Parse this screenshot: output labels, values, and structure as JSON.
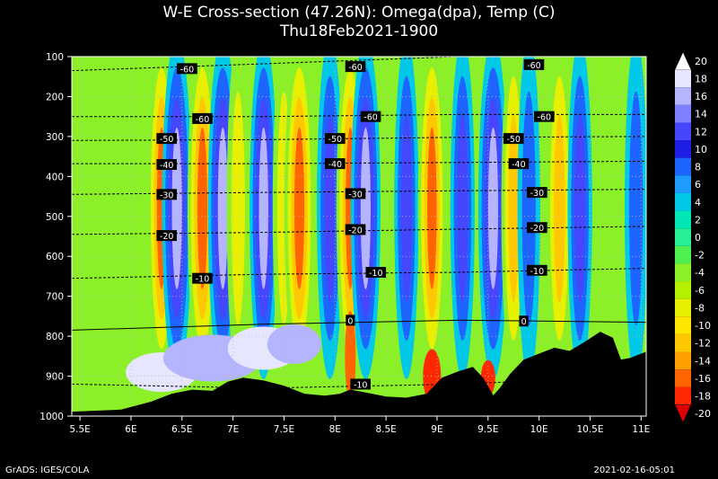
{
  "chart_data": {
    "type": "heatmap",
    "title": "W-E Cross-section (47.26N): Omega(dpa), Temp (C)",
    "subtitle": "Thu18Feb2021-1900",
    "x_tick_labels": [
      "5.5E",
      "6E",
      "6.5E",
      "7E",
      "7.5E",
      "8E",
      "8.5E",
      "9E",
      "9.5E",
      "10E",
      "10.5E",
      "11E"
    ],
    "x_tick_values": [
      5.5,
      6,
      6.5,
      7,
      7.5,
      8,
      8.5,
      9,
      9.5,
      10,
      10.5,
      11
    ],
    "xlim": [
      5.42,
      11.05
    ],
    "y_tick_labels": [
      "100",
      "200",
      "300",
      "400",
      "500",
      "600",
      "700",
      "800",
      "900",
      "1000"
    ],
    "y_tick_values": [
      100,
      200,
      300,
      400,
      500,
      600,
      700,
      800,
      900,
      1000
    ],
    "ylim": [
      100,
      1000
    ],
    "y_inverted": true,
    "colorbar_labels": [
      "20",
      "18",
      "16",
      "14",
      "12",
      "10",
      "8",
      "6",
      "4",
      "2",
      "0",
      "-2",
      "-4",
      "-6",
      "-8",
      "-10",
      "-12",
      "-14",
      "-16",
      "-18",
      "-20"
    ],
    "colorbar_colors": [
      "#ffffff",
      "#e6e6ff",
      "#b4b4ff",
      "#8080ff",
      "#4646ff",
      "#1e1ee6",
      "#1e64ff",
      "#1e9bff",
      "#00c8e6",
      "#00e6b4",
      "#28f096",
      "#50f050",
      "#8cf028",
      "#b4f000",
      "#e6f000",
      "#ffe600",
      "#ffc800",
      "#ffa000",
      "#ff6400",
      "#ff2800",
      "#dc0000"
    ],
    "omega_columns": [
      {
        "lon": 6.3,
        "value": -16
      },
      {
        "lon": 6.45,
        "value": 18
      },
      {
        "lon": 6.7,
        "value": -18
      },
      {
        "lon": 6.9,
        "value": 18
      },
      {
        "lon": 7.05,
        "value": -10
      },
      {
        "lon": 7.3,
        "value": 16
      },
      {
        "lon": 7.5,
        "value": -10
      },
      {
        "lon": 7.65,
        "value": -18
      },
      {
        "lon": 7.95,
        "value": 14
      },
      {
        "lon": 8.15,
        "value": -16
      },
      {
        "lon": 8.3,
        "value": 18
      },
      {
        "lon": 8.6,
        "value": -6
      },
      {
        "lon": 8.7,
        "value": 12
      },
      {
        "lon": 8.95,
        "value": -16
      },
      {
        "lon": 9.25,
        "value": 12
      },
      {
        "lon": 9.55,
        "value": 18
      },
      {
        "lon": 9.75,
        "value": -12
      },
      {
        "lon": 9.9,
        "value": 10
      },
      {
        "lon": 10.2,
        "value": -14
      },
      {
        "lon": 10.4,
        "value": 12
      },
      {
        "lon": 10.7,
        "value": -4
      },
      {
        "lon": 10.95,
        "value": 10
      }
    ],
    "temperature_contours": [
      {
        "label": "-60",
        "p": [
          135,
          118,
          100,
          90
        ]
      },
      {
        "label": "-60",
        "p": [
          250,
          250,
          245,
          245
        ]
      },
      {
        "label": "-50",
        "p": [
          310,
          308,
          302,
          300
        ]
      },
      {
        "label": "-40",
        "p": [
          368,
          368,
          365,
          362
        ]
      },
      {
        "label": "-30",
        "p": [
          445,
          440,
          436,
          432
        ]
      },
      {
        "label": "-20",
        "p": [
          545,
          540,
          532,
          525
        ]
      },
      {
        "label": "-10",
        "p": [
          655,
          645,
          640,
          630
        ]
      },
      {
        "label": "0",
        "p": [
          785,
          770,
          760,
          765
        ]
      },
      {
        "label": "-10",
        "p": [
          920,
          930,
          920,
          900
        ]
      }
    ],
    "contour_label_positions": [
      {
        "text": "-60",
        "lon": 6.55,
        "p": 130
      },
      {
        "text": "-60",
        "lon": 8.2,
        "p": 125
      },
      {
        "text": "-60",
        "lon": 9.95,
        "p": 120
      },
      {
        "text": "-60",
        "lon": 6.7,
        "p": 255
      },
      {
        "text": "-60",
        "lon": 8.35,
        "p": 250
      },
      {
        "text": "-60",
        "lon": 10.05,
        "p": 250
      },
      {
        "text": "-50",
        "lon": 6.35,
        "p": 305
      },
      {
        "text": "-50",
        "lon": 8.0,
        "p": 305
      },
      {
        "text": "-50",
        "lon": 9.75,
        "p": 305
      },
      {
        "text": "-40",
        "lon": 6.35,
        "p": 370
      },
      {
        "text": "-40",
        "lon": 8.0,
        "p": 368
      },
      {
        "text": "-40",
        "lon": 9.8,
        "p": 368
      },
      {
        "text": "-30",
        "lon": 6.35,
        "p": 445
      },
      {
        "text": "-30",
        "lon": 8.2,
        "p": 443
      },
      {
        "text": "-30",
        "lon": 9.98,
        "p": 440
      },
      {
        "text": "-20",
        "lon": 6.35,
        "p": 548
      },
      {
        "text": "-20",
        "lon": 8.2,
        "p": 533
      },
      {
        "text": "-20",
        "lon": 9.98,
        "p": 528
      },
      {
        "text": "-10",
        "lon": 6.7,
        "p": 655
      },
      {
        "text": "-10",
        "lon": 8.4,
        "p": 640
      },
      {
        "text": "-10",
        "lon": 9.98,
        "p": 635
      },
      {
        "text": "0",
        "lon": 8.15,
        "p": 760
      },
      {
        "text": "0",
        "lon": 9.85,
        "p": 762
      },
      {
        "text": "-10",
        "lon": 8.25,
        "p": 920
      }
    ],
    "terrain_surface_pressure": [
      [
        5.42,
        990
      ],
      [
        5.6,
        988
      ],
      [
        5.9,
        985
      ],
      [
        6.2,
        965
      ],
      [
        6.4,
        945
      ],
      [
        6.6,
        935
      ],
      [
        6.8,
        938
      ],
      [
        6.95,
        915
      ],
      [
        7.1,
        905
      ],
      [
        7.3,
        912
      ],
      [
        7.5,
        925
      ],
      [
        7.7,
        945
      ],
      [
        7.9,
        950
      ],
      [
        8.05,
        945
      ],
      [
        8.15,
        935
      ],
      [
        8.3,
        942
      ],
      [
        8.5,
        952
      ],
      [
        8.7,
        955
      ],
      [
        8.9,
        945
      ],
      [
        9.05,
        905
      ],
      [
        9.2,
        890
      ],
      [
        9.35,
        878
      ],
      [
        9.45,
        905
      ],
      [
        9.55,
        950
      ],
      [
        9.62,
        930
      ],
      [
        9.72,
        895
      ],
      [
        9.85,
        860
      ],
      [
        10.0,
        845
      ],
      [
        10.15,
        830
      ],
      [
        10.3,
        838
      ],
      [
        10.45,
        815
      ],
      [
        10.6,
        790
      ],
      [
        10.72,
        805
      ],
      [
        10.8,
        860
      ],
      [
        10.9,
        855
      ],
      [
        11.05,
        840
      ]
    ]
  },
  "footer": {
    "left": "GrADS: IGES/COLA",
    "right": "2021-02-16-05:01"
  }
}
